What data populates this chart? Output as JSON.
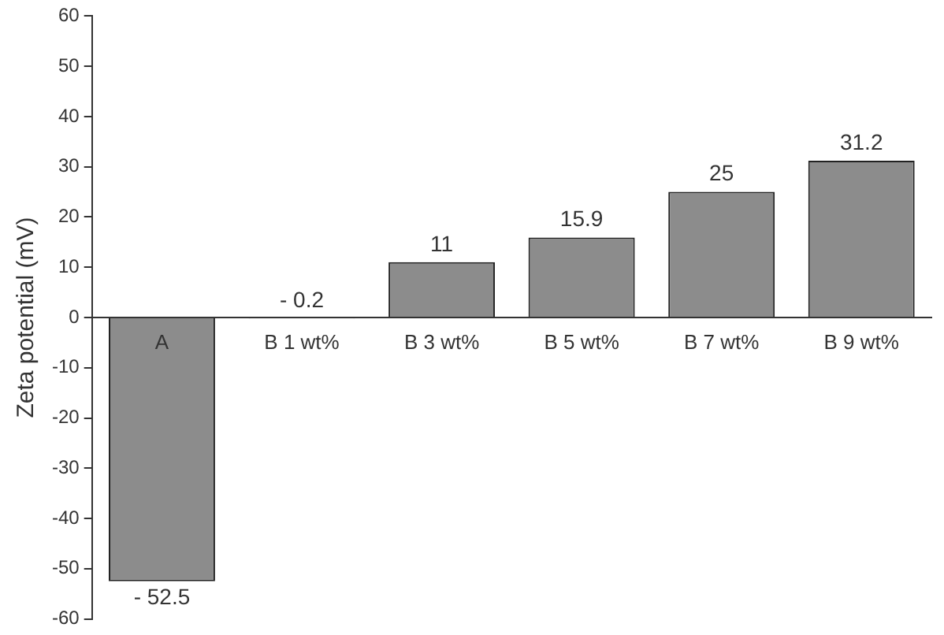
{
  "chart_data": {
    "type": "bar",
    "ylabel": "Zeta potential (mV)",
    "categories": [
      "A",
      "B 1 wt%",
      "B 3 wt%",
      "B 5 wt%",
      "B 7 wt%",
      "B 9 wt%"
    ],
    "values": [
      -52.5,
      -0.2,
      11,
      15.9,
      25,
      31.2
    ],
    "value_labels": [
      "- 52.5",
      "- 0.2",
      "11",
      "15.9",
      "25",
      "31.2"
    ],
    "color": "#8c8c8c",
    "ylim": [
      -60,
      60
    ],
    "yticks": [
      -60,
      -50,
      -40,
      -30,
      -20,
      -10,
      0,
      10,
      20,
      30,
      40,
      50,
      60
    ],
    "grid": false,
    "legend": false
  }
}
